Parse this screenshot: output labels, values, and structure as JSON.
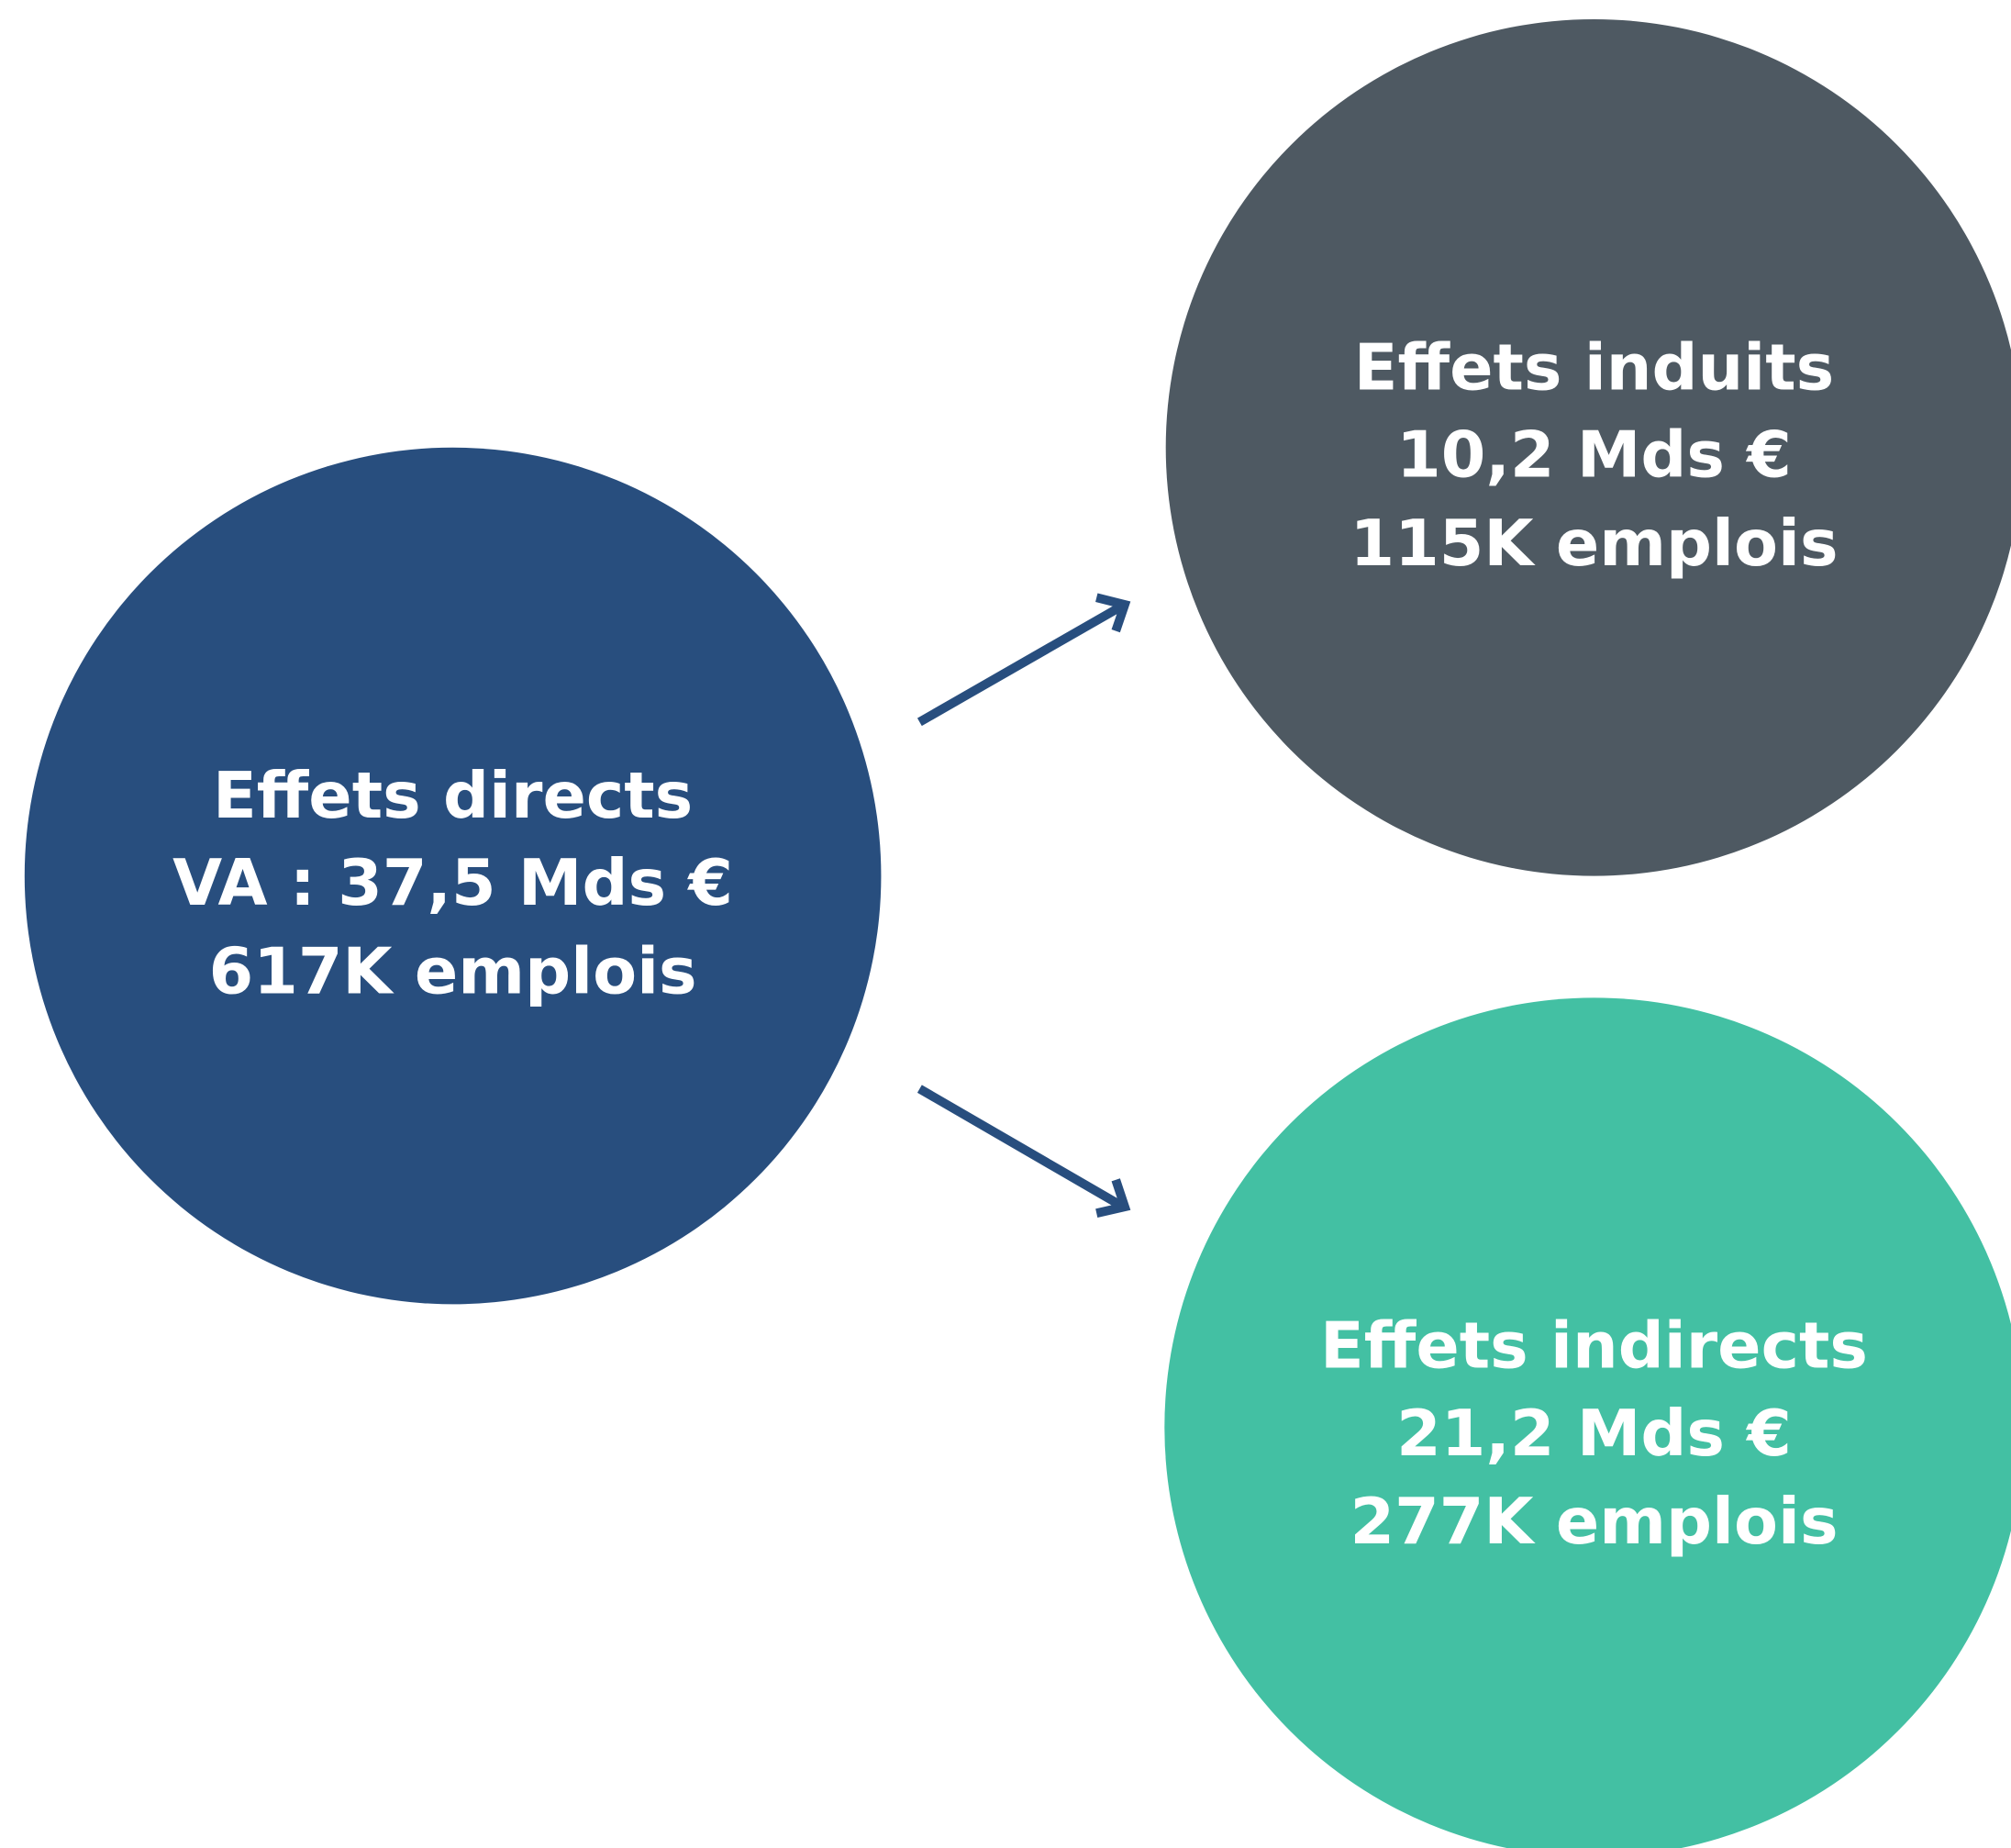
{
  "nodes": [
    {
      "lines": [
        "Effets directs",
        "VA : 37,5 Mds €",
        "617K emplois"
      ]
    },
    {
      "lines": [
        "Effets induits",
        "10,2 Mds €",
        "115K emplois"
      ]
    },
    {
      "lines": [
        "Effets indirects",
        "21,2 Mds €",
        "277K emplois"
      ]
    }
  ]
}
